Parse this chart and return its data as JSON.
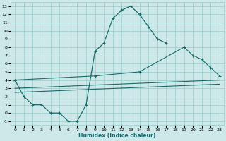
{
  "xlabel": "Humidex (Indice chaleur)",
  "bg_color": "#cce8e8",
  "grid_color": "#99cccc",
  "line_color": "#1a6b6b",
  "xlim": [
    -0.5,
    23.5
  ],
  "ylim": [
    -1.5,
    13.5
  ],
  "xticks": [
    0,
    1,
    2,
    3,
    4,
    5,
    6,
    7,
    8,
    9,
    10,
    11,
    12,
    13,
    14,
    15,
    16,
    17,
    18,
    19,
    20,
    21,
    22,
    23
  ],
  "yticks": [
    -1,
    0,
    1,
    2,
    3,
    4,
    5,
    6,
    7,
    8,
    9,
    10,
    11,
    12,
    13
  ],
  "series_main": {
    "x": [
      0,
      1,
      2,
      3,
      4,
      5,
      6,
      7,
      8,
      9,
      10,
      11,
      12,
      13,
      14,
      15,
      16,
      17,
      18,
      19,
      20,
      21,
      22,
      23
    ],
    "y": [
      4,
      2,
      1,
      1,
      0,
      0,
      -1,
      -1,
      1,
      7.5,
      8.5,
      11.5,
      12.5,
      13,
      12,
      10.5,
      9,
      8.5,
      null,
      null,
      null,
      null,
      null,
      null
    ]
  },
  "series_upper": {
    "x": [
      0,
      9,
      14,
      19,
      20,
      21,
      22,
      23
    ],
    "y": [
      4,
      4.5,
      5,
      8,
      7,
      6.5,
      5.5,
      4.5
    ]
  },
  "series_lower1": {
    "x": [
      0,
      23
    ],
    "y": [
      3,
      4
    ]
  },
  "series_lower2": {
    "x": [
      0,
      23
    ],
    "y": [
      2.5,
      3.5
    ]
  }
}
